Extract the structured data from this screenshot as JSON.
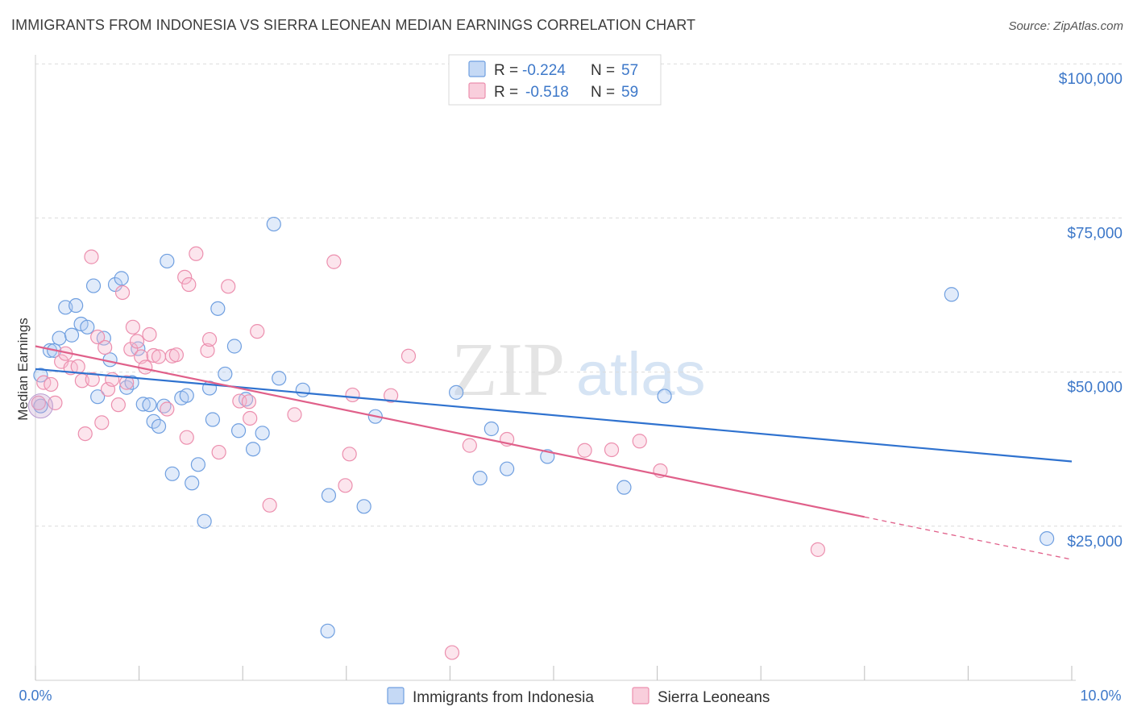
{
  "header": {
    "title": "IMMIGRANTS FROM INDONESIA VS SIERRA LEONEAN MEDIAN EARNINGS CORRELATION CHART",
    "source": "Source: ZipAtlas.com"
  },
  "watermark": {
    "zip": "ZIP",
    "atlas": "atlas"
  },
  "legend": {
    "r_label": "R =",
    "n_label": "N =",
    "rows": [
      {
        "r": "-0.224",
        "n": "57",
        "color": "#6f9fe0"
      },
      {
        "r": "-0.518",
        "n": "59",
        "color": "#ec8fae"
      }
    ]
  },
  "chart_data": {
    "type": "scatter",
    "title": "IMMIGRANTS FROM INDONESIA VS SIERRA LEONEAN MEDIAN EARNINGS CORRELATION CHART",
    "xlabel": "",
    "ylabel": "Median Earnings",
    "xlim": [
      0,
      10
    ],
    "ylim": [
      0,
      105000
    ],
    "x_tick_labels": [
      "0.0%",
      "10.0%"
    ],
    "y_ticks": [
      {
        "value": 100000,
        "label": "$100,000"
      },
      {
        "value": 75000,
        "label": "$75,000"
      },
      {
        "value": 50000,
        "label": "$50,000"
      },
      {
        "value": 25000,
        "label": "$25,000"
      }
    ],
    "grid": true,
    "legend_position": "top-center",
    "series": [
      {
        "name": "Immigrants from Indonesia",
        "color": "#6f9fe0",
        "line_color": "#2f72cf",
        "trend": {
          "x": [
            0,
            10
          ],
          "y": [
            50500,
            35500
          ]
        },
        "points": [
          [
            0.05,
            44500
          ],
          [
            0.05,
            49500
          ],
          [
            0.14,
            53500
          ],
          [
            0.18,
            53500
          ],
          [
            0.23,
            55500
          ],
          [
            0.29,
            60500
          ],
          [
            0.35,
            56000
          ],
          [
            0.39,
            60800
          ],
          [
            0.44,
            57800
          ],
          [
            0.5,
            57300
          ],
          [
            0.56,
            64000
          ],
          [
            0.6,
            46000
          ],
          [
            0.66,
            55500
          ],
          [
            0.72,
            52000
          ],
          [
            0.77,
            64200
          ],
          [
            0.83,
            65200
          ],
          [
            0.88,
            47500
          ],
          [
            0.93,
            48300
          ],
          [
            0.99,
            53800
          ],
          [
            1.04,
            44800
          ],
          [
            1.1,
            44700
          ],
          [
            1.14,
            42000
          ],
          [
            1.19,
            41200
          ],
          [
            1.24,
            44500
          ],
          [
            1.27,
            68000
          ],
          [
            1.32,
            33500
          ],
          [
            1.41,
            45800
          ],
          [
            1.46,
            46200
          ],
          [
            1.51,
            32000
          ],
          [
            1.57,
            35000
          ],
          [
            1.63,
            25800
          ],
          [
            1.68,
            47400
          ],
          [
            1.71,
            42300
          ],
          [
            1.76,
            60300
          ],
          [
            1.83,
            49700
          ],
          [
            1.92,
            54200
          ],
          [
            1.96,
            40500
          ],
          [
            2.03,
            45600
          ],
          [
            2.1,
            37500
          ],
          [
            2.19,
            40100
          ],
          [
            2.3,
            74000
          ],
          [
            2.35,
            49000
          ],
          [
            2.58,
            47100
          ],
          [
            2.82,
            8000
          ],
          [
            2.83,
            30000
          ],
          [
            3.17,
            28200
          ],
          [
            3.28,
            42800
          ],
          [
            4.06,
            46700
          ],
          [
            4.29,
            32800
          ],
          [
            4.4,
            40800
          ],
          [
            4.55,
            34300
          ],
          [
            4.94,
            36300
          ],
          [
            5.37,
            94800
          ],
          [
            5.68,
            31300
          ],
          [
            6.07,
            46100
          ],
          [
            8.84,
            62600
          ],
          [
            9.76,
            23000
          ]
        ]
      },
      {
        "name": "Sierra Leoneans",
        "color": "#ec8fae",
        "line_color": "#e0608a",
        "trend": {
          "x": [
            0,
            8.0
          ],
          "y": [
            54200,
            26500
          ]
        },
        "trend_dashed_to": {
          "x": 10,
          "y": 19600
        },
        "points": [
          [
            0.03,
            45000
          ],
          [
            0.08,
            48300
          ],
          [
            0.15,
            48000
          ],
          [
            0.19,
            45000
          ],
          [
            0.25,
            51700
          ],
          [
            0.29,
            53000
          ],
          [
            0.34,
            50700
          ],
          [
            0.41,
            50900
          ],
          [
            0.45,
            48600
          ],
          [
            0.48,
            40000
          ],
          [
            0.54,
            68700
          ],
          [
            0.55,
            48800
          ],
          [
            0.6,
            55700
          ],
          [
            0.64,
            41800
          ],
          [
            0.67,
            54000
          ],
          [
            0.7,
            47200
          ],
          [
            0.74,
            48800
          ],
          [
            0.8,
            44700
          ],
          [
            0.84,
            62900
          ],
          [
            0.88,
            48300
          ],
          [
            0.92,
            53700
          ],
          [
            0.94,
            57300
          ],
          [
            0.98,
            55000
          ],
          [
            1.02,
            52500
          ],
          [
            1.06,
            50800
          ],
          [
            1.1,
            56100
          ],
          [
            1.14,
            52700
          ],
          [
            1.19,
            52500
          ],
          [
            1.27,
            44000
          ],
          [
            1.32,
            52600
          ],
          [
            1.36,
            52800
          ],
          [
            1.44,
            65400
          ],
          [
            1.46,
            39400
          ],
          [
            1.48,
            64200
          ],
          [
            1.55,
            69200
          ],
          [
            1.66,
            53500
          ],
          [
            1.68,
            55300
          ],
          [
            1.77,
            37000
          ],
          [
            1.86,
            63900
          ],
          [
            1.97,
            45300
          ],
          [
            2.06,
            45200
          ],
          [
            2.07,
            42500
          ],
          [
            2.14,
            56600
          ],
          [
            2.26,
            28400
          ],
          [
            2.5,
            43100
          ],
          [
            2.88,
            67900
          ],
          [
            2.99,
            31600
          ],
          [
            3.03,
            36700
          ],
          [
            3.06,
            46300
          ],
          [
            3.43,
            46200
          ],
          [
            3.6,
            52600
          ],
          [
            4.02,
            4500
          ],
          [
            4.19,
            38100
          ],
          [
            4.55,
            39100
          ],
          [
            5.56,
            37400
          ],
          [
            5.83,
            38800
          ],
          [
            6.03,
            34000
          ],
          [
            7.55,
            21200
          ],
          [
            5.3,
            37300
          ]
        ]
      }
    ]
  },
  "bottom_legend": {
    "items": [
      {
        "label": "Immigrants from Indonesia",
        "color": "#6f9fe0"
      },
      {
        "label": "Sierra Leoneans",
        "color": "#ec8fae"
      }
    ]
  }
}
